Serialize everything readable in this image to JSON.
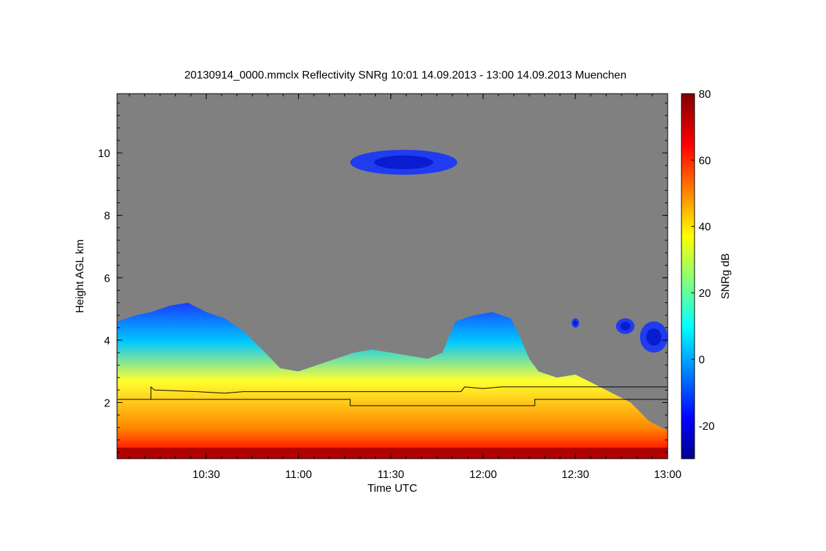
{
  "chart_data": {
    "type": "heatmap",
    "title": "20130914_0000.mmclx Reflectivity SNRg   10:01 14.09.2013 - 13:00 14.09.2013 Muenchen",
    "xlabel": "Time UTC",
    "ylabel": "Height AGL km",
    "x_ticks": [
      {
        "value": 10.5,
        "label": "10:30"
      },
      {
        "value": 11.0,
        "label": "11:00"
      },
      {
        "value": 11.5,
        "label": "11:30"
      },
      {
        "value": 12.0,
        "label": "12:00"
      },
      {
        "value": 12.5,
        "label": "12:30"
      },
      {
        "value": 13.0,
        "label": "13:00"
      }
    ],
    "y_ticks": [
      {
        "value": 2,
        "label": "2"
      },
      {
        "value": 4,
        "label": "4"
      },
      {
        "value": 6,
        "label": "6"
      },
      {
        "value": 8,
        "label": "8"
      },
      {
        "value": 10,
        "label": "10"
      }
    ],
    "xlim": [
      10.0167,
      13.0
    ],
    "ylim": [
      0.2,
      11.9
    ],
    "colorbar": {
      "label": "SNRg dB",
      "range": [
        -30,
        80
      ],
      "ticks": [
        {
          "value": -20,
          "label": "-20"
        },
        {
          "value": 0,
          "label": "0"
        },
        {
          "value": 20,
          "label": "20"
        },
        {
          "value": 40,
          "label": "40"
        },
        {
          "value": 60,
          "label": "60"
        },
        {
          "value": 80,
          "label": "80"
        }
      ]
    },
    "background_color": "#808080",
    "echo_top_km": [
      [
        10.02,
        4.6
      ],
      [
        10.12,
        4.8
      ],
      [
        10.2,
        4.9
      ],
      [
        10.3,
        5.1
      ],
      [
        10.4,
        5.2
      ],
      [
        10.5,
        4.9
      ],
      [
        10.6,
        4.7
      ],
      [
        10.7,
        4.3
      ],
      [
        10.75,
        4.0
      ],
      [
        10.82,
        3.6
      ],
      [
        10.9,
        3.1
      ],
      [
        11.0,
        3.0
      ],
      [
        11.1,
        3.2
      ],
      [
        11.2,
        3.4
      ],
      [
        11.3,
        3.6
      ],
      [
        11.4,
        3.7
      ],
      [
        11.5,
        3.6
      ],
      [
        11.6,
        3.5
      ],
      [
        11.7,
        3.4
      ],
      [
        11.78,
        3.6
      ],
      [
        11.85,
        4.6
      ],
      [
        11.95,
        4.8
      ],
      [
        12.05,
        4.9
      ],
      [
        12.15,
        4.7
      ],
      [
        12.2,
        4.1
      ],
      [
        12.25,
        3.4
      ],
      [
        12.3,
        3.0
      ],
      [
        12.4,
        2.8
      ],
      [
        12.5,
        2.9
      ],
      [
        12.6,
        2.6
      ],
      [
        12.7,
        2.3
      ],
      [
        12.8,
        2.0
      ],
      [
        12.9,
        1.4
      ],
      [
        13.0,
        1.1
      ]
    ],
    "cloud_patches": [
      {
        "t0": 11.28,
        "t1": 11.86,
        "h0": 9.3,
        "h1": 10.1
      },
      {
        "t0": 12.48,
        "t1": 12.52,
        "h0": 4.4,
        "h1": 4.7
      },
      {
        "t0": 12.72,
        "t1": 12.82,
        "h0": 4.2,
        "h1": 4.7
      },
      {
        "t0": 12.85,
        "t1": 13.0,
        "h0": 3.6,
        "h1": 4.6
      }
    ],
    "reference_lines": [
      {
        "name": "upper",
        "points": [
          [
            10.02,
            2.1
          ],
          [
            11.28,
            2.1
          ],
          [
            11.28,
            1.9
          ],
          [
            12.28,
            1.9
          ],
          [
            12.28,
            2.1
          ],
          [
            13.0,
            2.1
          ]
        ]
      },
      {
        "name": "lower",
        "points": [
          [
            10.2,
            2.1
          ],
          [
            10.2,
            2.5
          ],
          [
            10.22,
            2.4
          ],
          [
            10.45,
            2.35
          ],
          [
            10.6,
            2.3
          ],
          [
            10.7,
            2.35
          ],
          [
            10.75,
            2.35
          ],
          [
            11.88,
            2.35
          ],
          [
            11.9,
            2.5
          ],
          [
            12.0,
            2.45
          ],
          [
            12.1,
            2.5
          ],
          [
            12.15,
            2.5
          ],
          [
            13.0,
            2.5
          ]
        ]
      }
    ]
  }
}
